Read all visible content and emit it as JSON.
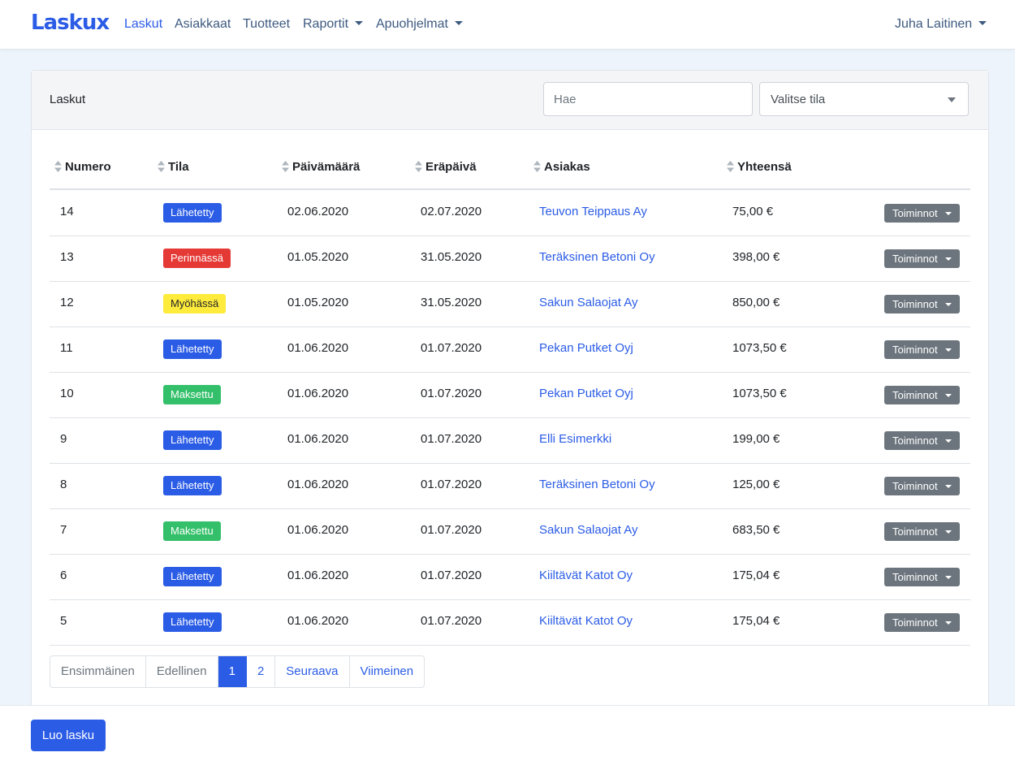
{
  "navbar": {
    "brand": "Laskux",
    "links": [
      "Laskut",
      "Asiakkaat",
      "Tuotteet",
      "Raportit",
      "Apuohjelmat"
    ],
    "user": "Juha Laitinen"
  },
  "card": {
    "title": "Laskut",
    "search_placeholder": "Hae",
    "status_select": "Valitse tila"
  },
  "table": {
    "headers": [
      "Numero",
      "Tila",
      "Päivämäärä",
      "Eräpäivä",
      "Asiakas",
      "Yhteensä"
    ],
    "action_label": "Toiminnot",
    "rows": [
      {
        "numero": "14",
        "tila": "Lähetetty",
        "paivamaara": "02.06.2020",
        "erapaiva": "02.07.2020",
        "asiakas": "Teuvon Teippaus Ay",
        "yhteensa": "75,00 €"
      },
      {
        "numero": "13",
        "tila": "Perinnässä",
        "paivamaara": "01.05.2020",
        "erapaiva": "31.05.2020",
        "asiakas": "Teräksinen Betoni Oy",
        "yhteensa": "398,00 €"
      },
      {
        "numero": "12",
        "tila": "Myöhässä",
        "paivamaara": "01.05.2020",
        "erapaiva": "31.05.2020",
        "asiakas": "Sakun Salaojat Ay",
        "yhteensa": "850,00 €"
      },
      {
        "numero": "11",
        "tila": "Lähetetty",
        "paivamaara": "01.06.2020",
        "erapaiva": "01.07.2020",
        "asiakas": "Pekan Putket Oyj",
        "yhteensa": "1073,50 €"
      },
      {
        "numero": "10",
        "tila": "Maksettu",
        "paivamaara": "01.06.2020",
        "erapaiva": "01.07.2020",
        "asiakas": "Pekan Putket Oyj",
        "yhteensa": "1073,50 €"
      },
      {
        "numero": "9",
        "tila": "Lähetetty",
        "paivamaara": "01.06.2020",
        "erapaiva": "01.07.2020",
        "asiakas": "Elli Esimerkki",
        "yhteensa": "199,00 €"
      },
      {
        "numero": "8",
        "tila": "Lähetetty",
        "paivamaara": "01.06.2020",
        "erapaiva": "01.07.2020",
        "asiakas": "Teräksinen Betoni Oy",
        "yhteensa": "125,00 €"
      },
      {
        "numero": "7",
        "tila": "Maksettu",
        "paivamaara": "01.06.2020",
        "erapaiva": "01.07.2020",
        "asiakas": "Sakun Salaojat Ay",
        "yhteensa": "683,50 €"
      },
      {
        "numero": "6",
        "tila": "Lähetetty",
        "paivamaara": "01.06.2020",
        "erapaiva": "01.07.2020",
        "asiakas": "Kiiltävät Katot Oy",
        "yhteensa": "175,04 €"
      },
      {
        "numero": "5",
        "tila": "Lähetetty",
        "paivamaara": "01.06.2020",
        "erapaiva": "01.07.2020",
        "asiakas": "Kiiltävät Katot Oy",
        "yhteensa": "175,04 €"
      }
    ]
  },
  "status_colors": {
    "Lähetetty": "#2b5ce6",
    "Perinnässä": "#e53935",
    "Myöhässä": "#ffeb3b",
    "Maksettu": "#34c06a"
  },
  "pagination": {
    "items": [
      {
        "label": "Ensimmäinen",
        "state": "disabled"
      },
      {
        "label": "Edellinen",
        "state": "disabled"
      },
      {
        "label": "1",
        "state": "active"
      },
      {
        "label": "2",
        "state": "normal"
      },
      {
        "label": "Seuraava",
        "state": "normal"
      },
      {
        "label": "Viimeinen",
        "state": "normal"
      }
    ]
  },
  "footer": {
    "create_button": "Luo lasku"
  }
}
